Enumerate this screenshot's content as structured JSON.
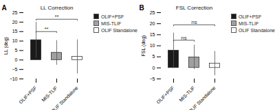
{
  "chart_data": [
    {
      "type": "bar",
      "panel_label": "A",
      "title": "LL Correction",
      "ylabel": "LL (deg)",
      "categories": [
        "OLIF+PSF",
        "MIS-TLIF",
        "OLIF Standalone"
      ],
      "values": [
        10.5,
        3.8,
        1.7
      ],
      "errors": [
        9.5,
        6.5,
        9.0
      ],
      "colors": [
        "#1a1a1a",
        "#a0a0a0",
        "#ffffff"
      ],
      "ylim": [
        -10,
        25
      ],
      "yticks": [
        -10,
        -5,
        0,
        5,
        10,
        15,
        20,
        25
      ],
      "legend": "upper right",
      "brackets": [
        {
          "from": "OLIF+PSF",
          "to": "MIS-TLIF",
          "y": 15.0,
          "label": "**"
        },
        {
          "from": "OLIF+PSF",
          "to": "OLIF Standalone",
          "y": 21.5,
          "label": "**"
        }
      ]
    },
    {
      "type": "bar",
      "panel_label": "B",
      "title": "FSL Correction",
      "ylabel": "FSL (deg)",
      "categories": [
        "OLIF+PSF",
        "MIS-TLIF",
        "OLIF Standalone"
      ],
      "values": [
        7.8,
        4.8,
        2.0
      ],
      "errors": [
        8.0,
        5.5,
        5.5
      ],
      "colors": [
        "#1a1a1a",
        "#a0a0a0",
        "#ffffff"
      ],
      "ylim": [
        -5,
        25
      ],
      "yticks": [
        -5,
        0,
        5,
        10,
        15,
        20,
        25
      ],
      "legend": "upper right",
      "brackets": [
        {
          "from": "OLIF+PSF",
          "to": "MIS-TLIF",
          "y": 12.5,
          "label": "ns"
        },
        {
          "from": "OLIF+PSF",
          "to": "OLIF Standalone",
          "y": 19.5,
          "label": "ns"
        }
      ]
    }
  ]
}
